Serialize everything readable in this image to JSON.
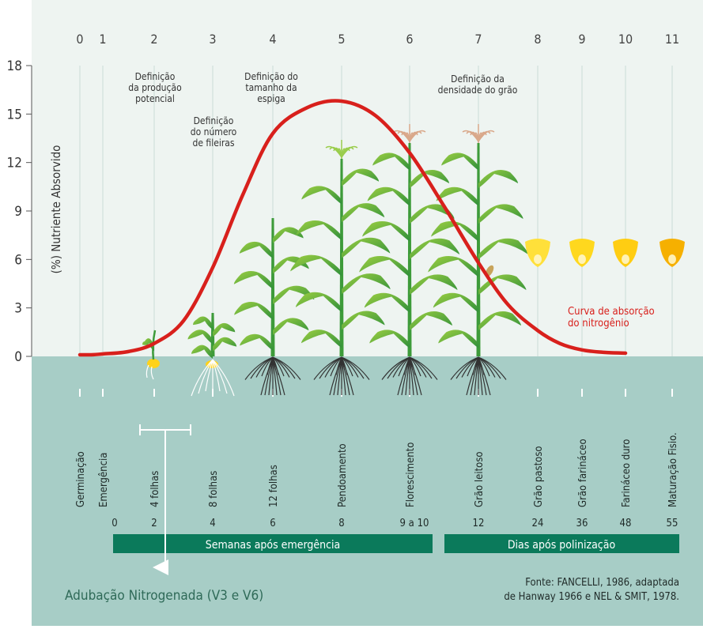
{
  "chart_data": {
    "type": "line",
    "ylabel": "(%) Nutriente Absorvido",
    "ylim": [
      0,
      18
    ],
    "y_ticks": [
      "0",
      "3",
      "6",
      "9",
      "12",
      "15",
      "18"
    ],
    "stage_numbers": [
      "0",
      "1",
      "2",
      "3",
      "4",
      "5",
      "6",
      "7",
      "8",
      "9",
      "10",
      "11"
    ],
    "stage_names": [
      "Germinação",
      "Emergência",
      "4 folhas",
      "8 folhas",
      "12 folhas",
      "Pendoamento",
      "Florescimento",
      "Grão leitoso",
      "Grão pastoso",
      "Grão farináceo",
      "Farináceo duro",
      "Maturação Fisio."
    ],
    "time_values": [
      "0",
      "2",
      "4",
      "6",
      "8",
      "9 a 10",
      "12",
      "24",
      "36",
      "48",
      "55"
    ],
    "annotations": [
      {
        "lines": [
          "Definição",
          "da produção",
          "potencial"
        ]
      },
      {
        "lines": [
          "Definição",
          "do número",
          "de fileiras"
        ]
      },
      {
        "lines": [
          "Definição do",
          "tamanho da",
          "espiga"
        ]
      },
      {
        "lines": [
          "Definição da",
          "densidade do grão"
        ]
      }
    ],
    "series": [
      {
        "name": "Curva de absorção do nitrogênio",
        "name_lines": [
          "Curva de absorção",
          "do nitrogênio"
        ],
        "color": "#d8201c",
        "x": [
          0,
          0.5,
          1,
          1.5,
          2,
          2.5,
          3,
          3.5,
          4,
          4.5,
          5,
          5.5,
          6,
          6.5,
          7,
          7.5,
          8,
          8.5,
          9,
          9.5,
          10
        ],
        "values": [
          0.1,
          0.1,
          0.15,
          0.3,
          0.8,
          2.2,
          5.5,
          10.0,
          13.8,
          15.4,
          15.8,
          14.9,
          12.6,
          9.3,
          5.8,
          3.2,
          1.6,
          0.8,
          0.4,
          0.25,
          0.2
        ]
      }
    ],
    "grid": true
  },
  "bands": {
    "weeks_label": "Semanas após emergência",
    "days_label": "Dias após polinização"
  },
  "fertilization_label": "Adubação Nitrogenada (V3 e V6)",
  "source_lines": [
    "Fonte: FANCELLI, 1986, adaptada",
    "de Hanway 1966 e NEL & SMIT, 1978."
  ],
  "colors": {
    "top_bg": "#eef4f1",
    "bottom_bg": "#a7cdc6",
    "band": "#0b7a5b",
    "curve": "#d8201c",
    "plant": "#4da13c"
  }
}
